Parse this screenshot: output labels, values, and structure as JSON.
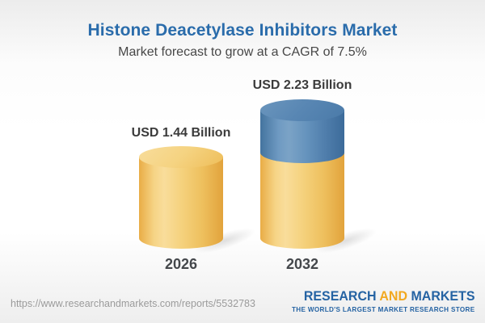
{
  "header": {
    "title": "Histone Deacetylase Inhibitors Market",
    "subtitle": "Market forecast to grow at a CAGR of 7.5%"
  },
  "chart_data": {
    "type": "bar",
    "variant": "3d-cylinder",
    "title": "Histone Deacetylase Inhibitors Market",
    "subtitle": "Market forecast to grow at a CAGR of 7.5%",
    "cagr_percent": 7.5,
    "unit": "USD Billion",
    "categories": [
      "2026",
      "2032"
    ],
    "values": [
      1.44,
      2.23
    ],
    "value_labels": [
      "USD 1.44 Billion",
      "USD 2.23 Billion"
    ],
    "annotations": "2032 cylinder shows growth segment stacked in blue above the gold base equal to the 2026 value",
    "colors": {
      "base_segment": "#F2C express",
      "base_segment_gold": "#F2C367",
      "growth_segment_blue": "#5586B3",
      "title_blue": "#2A6CAB",
      "label_gray": "#3B3B3B"
    },
    "legend": "none",
    "axes": "none (value labels above bars, year labels below bars)"
  },
  "footer": {
    "url": "https://www.researchandmarkets.com/reports/5532783",
    "logo": {
      "part1": "RESEARCH",
      "part2": "AND",
      "part3": "MARKETS",
      "tagline": "THE WORLD'S LARGEST MARKET RESEARCH STORE",
      "blue": "#2563A3",
      "gold": "#F2A81F"
    }
  }
}
